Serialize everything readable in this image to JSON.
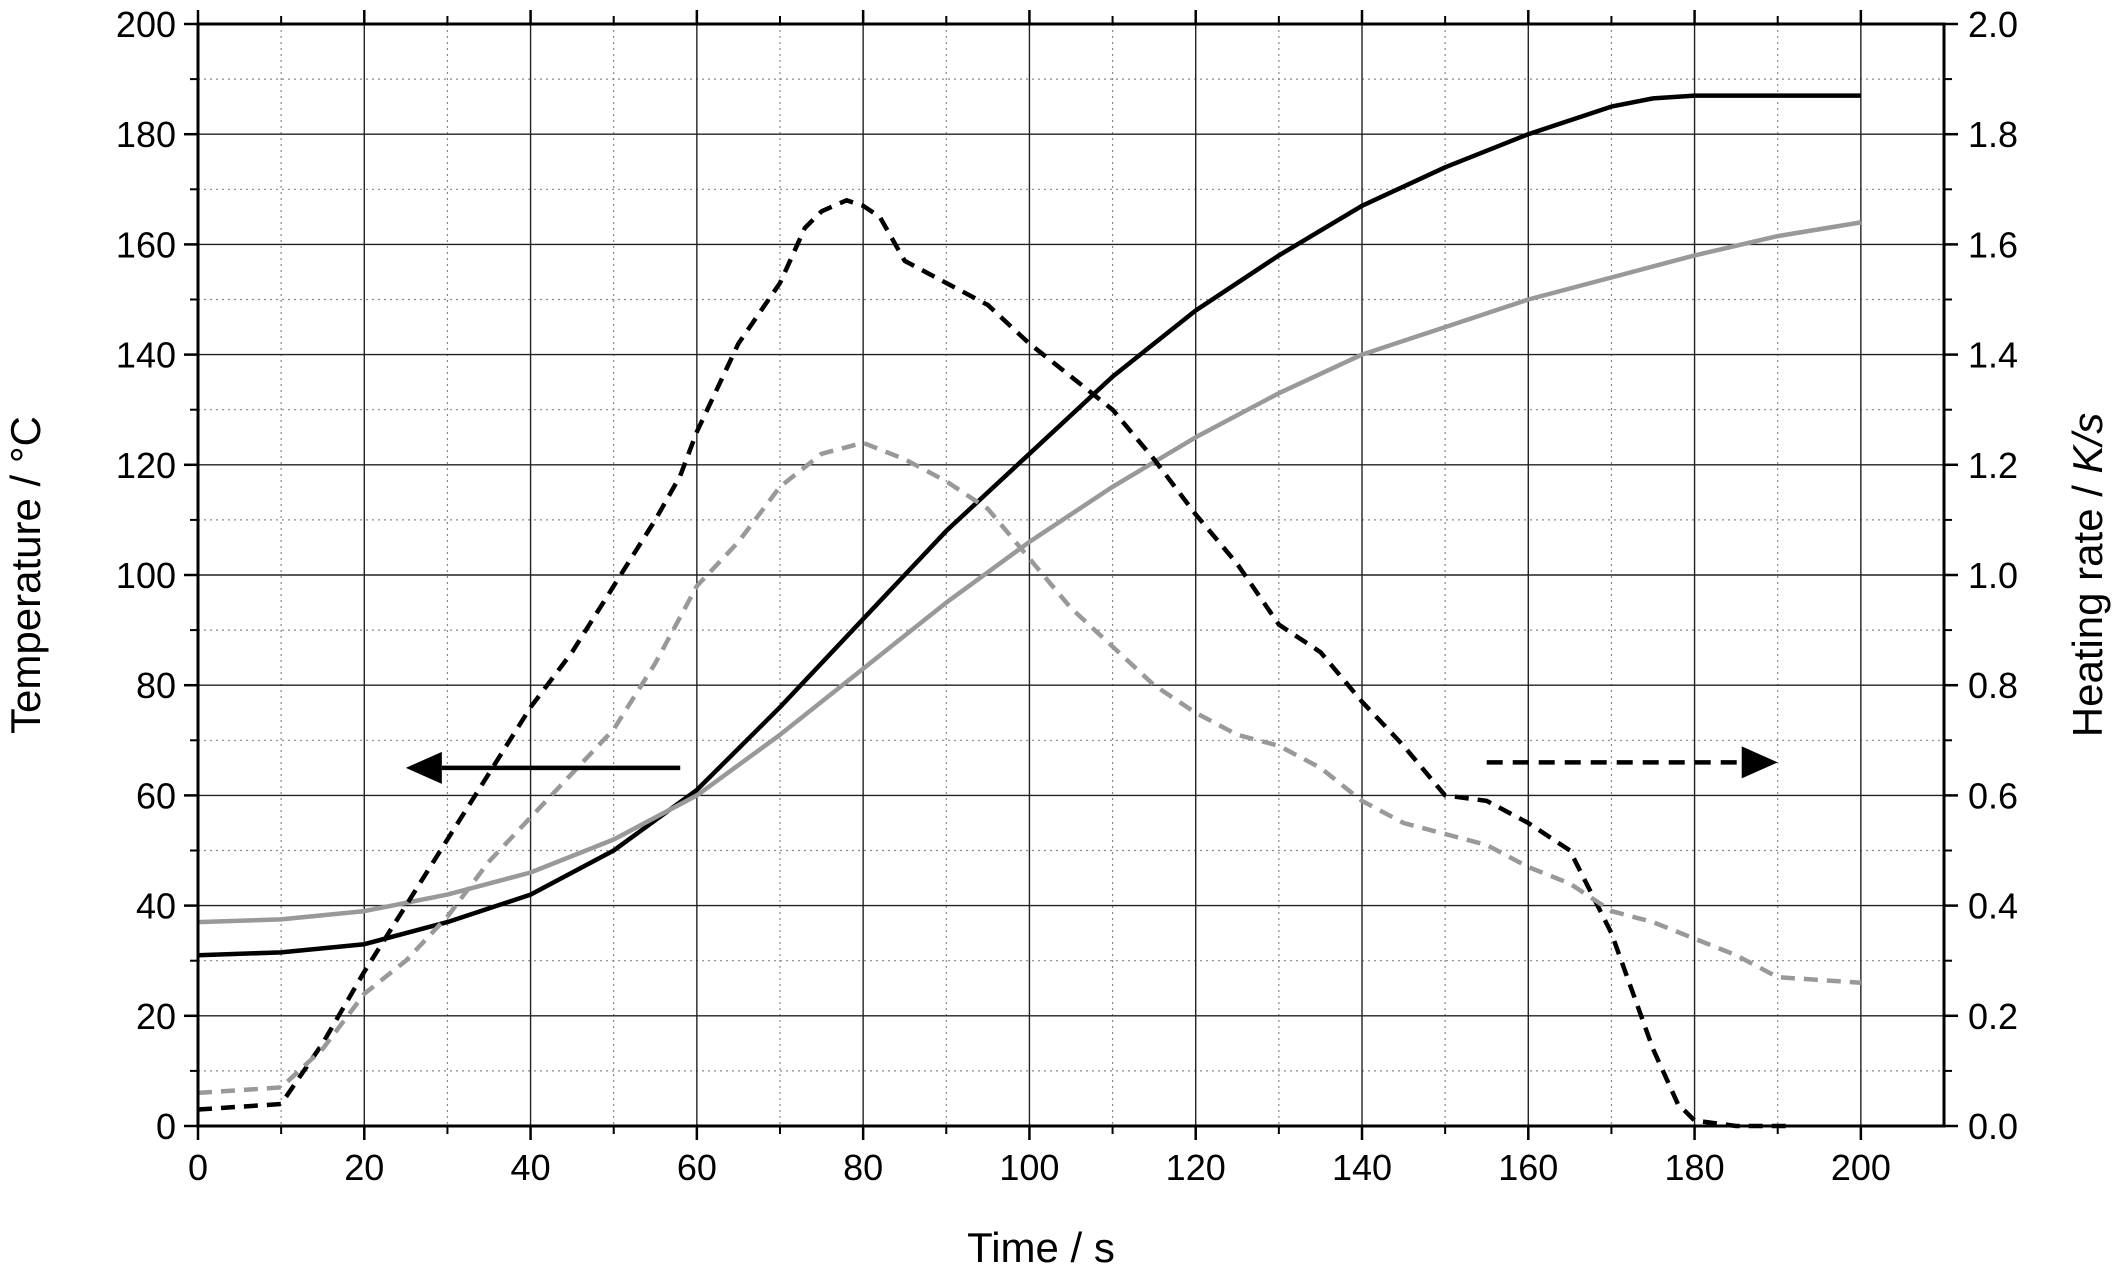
{
  "chart_data": {
    "type": "line",
    "xlabel": "Time / s",
    "ylabel_left": "Temperature / °C",
    "ylabel_right_prefix": "Heating rate / ",
    "ylabel_right_italic": "K/s",
    "xlim": [
      0,
      210
    ],
    "ylim_left": [
      0,
      200
    ],
    "ylim_right": [
      0.0,
      2.0
    ],
    "grid": true,
    "x_ticks": [
      "0",
      "20",
      "40",
      "60",
      "80",
      "100",
      "120",
      "140",
      "160",
      "180",
      "200"
    ],
    "y_left_ticks": [
      "0",
      "20",
      "40",
      "60",
      "80",
      "100",
      "120",
      "140",
      "160",
      "180",
      "200"
    ],
    "y_right_ticks": [
      "0.0",
      "0.2",
      "0.4",
      "0.6",
      "0.8",
      "1.0",
      "1.2",
      "1.4",
      "1.6",
      "1.8",
      "2.0"
    ],
    "colors": {
      "black": "#000000",
      "gray": "#999999",
      "grid": "#888888"
    },
    "series": [
      {
        "axis": "left",
        "style": "solid",
        "color": "#000000",
        "x": [
          0,
          10,
          20,
          30,
          40,
          50,
          60,
          70,
          80,
          90,
          100,
          110,
          120,
          130,
          140,
          150,
          160,
          170,
          175,
          180,
          190,
          200
        ],
        "y": [
          31,
          31.5,
          33,
          37,
          42,
          50,
          61,
          76,
          92,
          108,
          122,
          136,
          148,
          158,
          167,
          174,
          180,
          185,
          186.5,
          187,
          187,
          187
        ]
      },
      {
        "axis": "left",
        "style": "solid",
        "color": "#999999",
        "x": [
          0,
          10,
          20,
          30,
          40,
          50,
          60,
          70,
          80,
          90,
          100,
          110,
          120,
          130,
          140,
          150,
          160,
          170,
          180,
          190,
          200
        ],
        "y": [
          37,
          37.5,
          39,
          42,
          46,
          52,
          60,
          71,
          83,
          95,
          106,
          116,
          125,
          133,
          140,
          145,
          150,
          154,
          158,
          161.5,
          164
        ]
      },
      {
        "axis": "right",
        "style": "dashed",
        "color": "#000000",
        "x": [
          0,
          10,
          15,
          20,
          25,
          30,
          35,
          40,
          45,
          50,
          55,
          58,
          60,
          65,
          70,
          73,
          75,
          78,
          80,
          82,
          85,
          90,
          95,
          100,
          105,
          110,
          115,
          120,
          125,
          130,
          135,
          140,
          145,
          150,
          155,
          160,
          165,
          170,
          175,
          178,
          180,
          185,
          192
        ],
        "y": [
          0.03,
          0.04,
          0.15,
          0.28,
          0.4,
          0.52,
          0.64,
          0.76,
          0.86,
          0.98,
          1.1,
          1.18,
          1.26,
          1.42,
          1.53,
          1.63,
          1.66,
          1.68,
          1.67,
          1.65,
          1.57,
          1.53,
          1.49,
          1.42,
          1.36,
          1.3,
          1.21,
          1.11,
          1.02,
          0.91,
          0.86,
          0.77,
          0.69,
          0.6,
          0.59,
          0.55,
          0.5,
          0.35,
          0.14,
          0.04,
          0.01,
          0.0,
          0.0
        ]
      },
      {
        "axis": "right",
        "style": "dashed",
        "color": "#999999",
        "x": [
          0,
          10,
          15,
          20,
          25,
          30,
          35,
          40,
          45,
          50,
          55,
          60,
          65,
          70,
          75,
          80,
          85,
          90,
          95,
          100,
          105,
          110,
          115,
          120,
          125,
          130,
          135,
          140,
          145,
          150,
          155,
          160,
          165,
          170,
          175,
          180,
          185,
          190,
          200
        ],
        "y": [
          0.06,
          0.07,
          0.14,
          0.24,
          0.3,
          0.38,
          0.48,
          0.56,
          0.64,
          0.72,
          0.84,
          0.98,
          1.06,
          1.16,
          1.22,
          1.24,
          1.21,
          1.17,
          1.12,
          1.03,
          0.94,
          0.87,
          0.8,
          0.75,
          0.71,
          0.69,
          0.65,
          0.59,
          0.55,
          0.53,
          0.51,
          0.47,
          0.44,
          0.39,
          0.37,
          0.34,
          0.31,
          0.27,
          0.26
        ]
      }
    ],
    "annotations": [
      {
        "type": "arrow",
        "style": "solid",
        "direction": "left",
        "x_from": 58,
        "x_to": 25,
        "y_left": 65
      },
      {
        "type": "arrow",
        "style": "dashed",
        "direction": "right",
        "x_from": 155,
        "x_to": 190,
        "y_left": 66
      }
    ]
  }
}
